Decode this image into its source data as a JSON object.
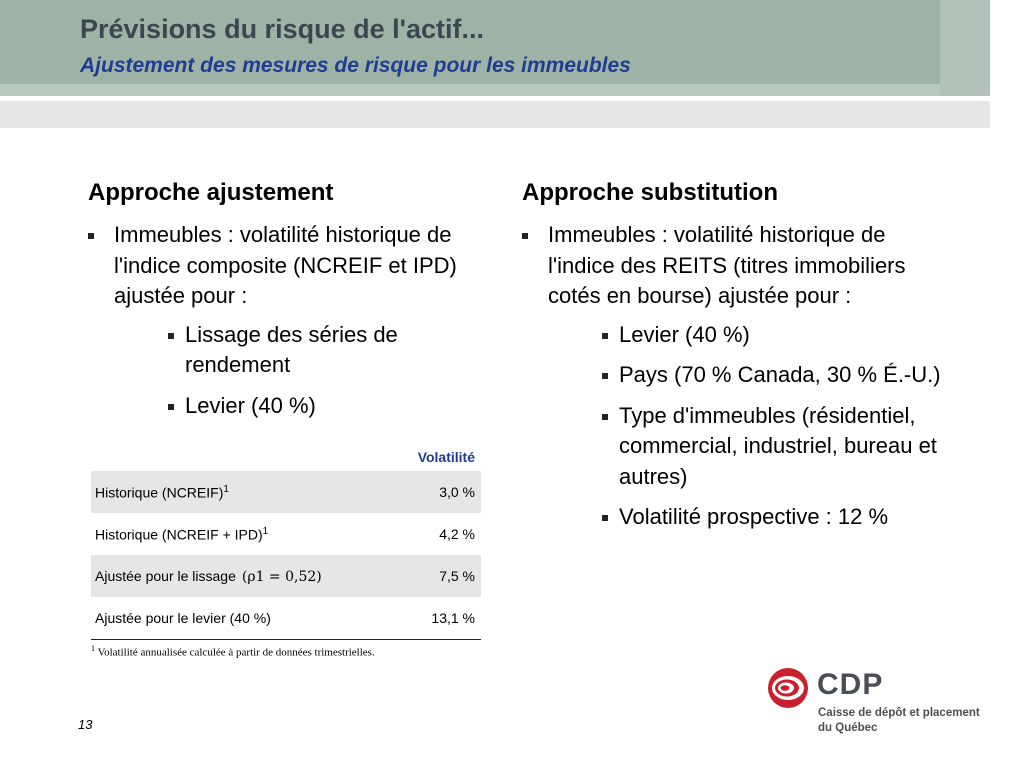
{
  "header": {
    "title": "Prévisions du risque de l'actif...",
    "subtitle": "Ajustement des mesures de risque pour les immeubles"
  },
  "left": {
    "heading": "Approche ajustement",
    "bullet": "Immeubles : volatilité historique de l'indice composite (NCREIF et IPD) ajustée pour :",
    "sub": [
      "Lissage des séries de rendement",
      "Levier (40 %)"
    ]
  },
  "right": {
    "heading": "Approche substitution",
    "bullet": "Immeubles : volatilité historique de l'indice des REITS (titres immobiliers cotés en bourse) ajustée pour :",
    "sub": [
      "Levier (40 %)",
      "Pays (70 % Canada, 30 % É.-U.)",
      "Type d'immeubles (résidentiel, commercial, industriel, bureau et autres)",
      "Volatilité prospective : 12 %"
    ]
  },
  "table": {
    "header": "Volatilité",
    "rows": [
      {
        "label": "Historique (NCREIF)",
        "sup": "1",
        "extra": "",
        "value": "3,0 %"
      },
      {
        "label": "Historique (NCREIF + IPD)",
        "sup": "1",
        "extra": "",
        "value": "4,2 %"
      },
      {
        "label": "Ajustée pour le lissage",
        "sup": "",
        "extra": "(ρ1 = 0,52)",
        "value": "7,5 %"
      },
      {
        "label": "Ajustée pour le levier (40 %)",
        "sup": "",
        "extra": "",
        "value": "13,1 %"
      }
    ],
    "footnote_mark": "1",
    "footnote": "Volatilité annualisée calculée à partir de données trimestrielles."
  },
  "page_number": "13",
  "logo": {
    "name": "CDP",
    "tagline_1": "Caisse de dépôt et placement",
    "tagline_2": "du Québec",
    "colors": {
      "ring": "#c8202f",
      "text": "#4a4f55"
    }
  }
}
